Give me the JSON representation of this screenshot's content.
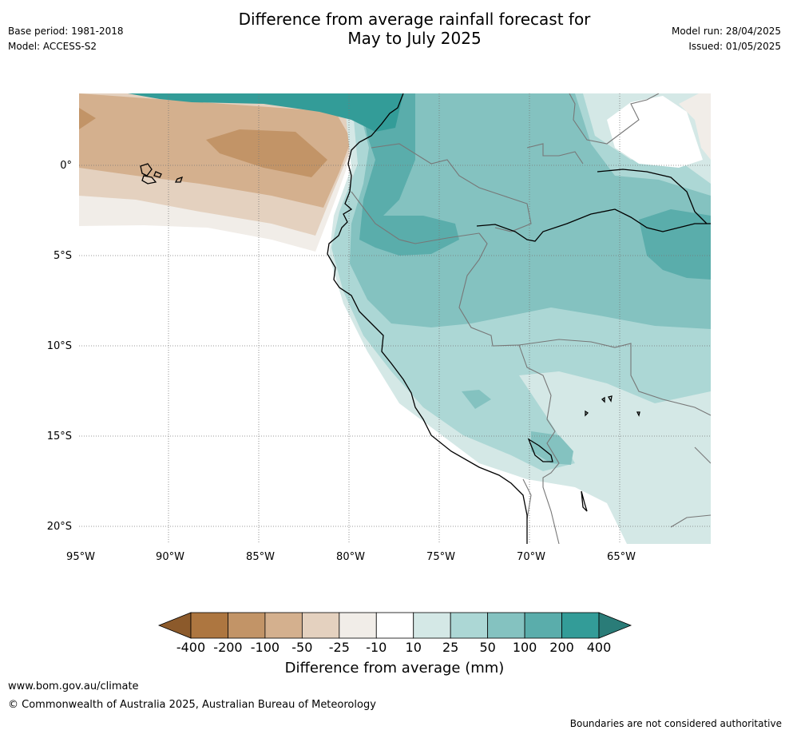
{
  "title": {
    "line1": "Difference from average rainfall forecast for",
    "line2": "May to July 2025"
  },
  "meta_left": {
    "base_period": "Base period: 1981-2018",
    "model": "Model: ACCESS-S2"
  },
  "meta_right": {
    "model_run": "Model run: 28/04/2025",
    "issued": "Issued: 01/05/2025"
  },
  "map": {
    "lat_labels": [
      "0°",
      "5°S",
      "10°S",
      "15°S",
      "20°S"
    ],
    "lon_labels": [
      "95°W",
      "90°W",
      "85°W",
      "80°W",
      "75°W",
      "70°W",
      "65°W"
    ]
  },
  "colorbar": {
    "title": "Difference from average (mm)",
    "tick_labels": [
      "-400",
      "-200",
      "-100",
      "-50",
      "-25",
      "-10",
      "10",
      "25",
      "50",
      "100",
      "200",
      "400"
    ],
    "colors": [
      "#8c5a2b",
      "#ad7640",
      "#c29467",
      "#d4b08e",
      "#e4d1bf",
      "#f1ede8",
      "#ffffff",
      "#d4e8e6",
      "#acd7d5",
      "#84c2c0",
      "#5aadab",
      "#339c98",
      "#2a7c78"
    ]
  },
  "footer": {
    "url": "www.bom.gov.au/climate",
    "copyright": "© Commonwealth of Australia 2025, Australian Bureau of Meteorology",
    "note": "Boundaries are not considered authoritative"
  }
}
